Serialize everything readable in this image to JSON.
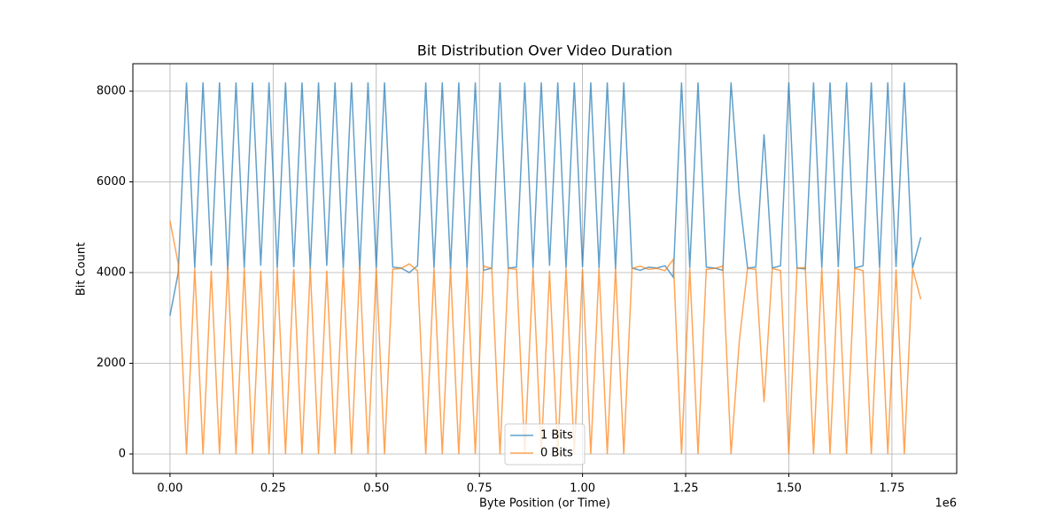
{
  "chart_data": {
    "type": "line",
    "title": "Bit Distribution Over Video Duration",
    "x_label": "Byte Position (or Time)",
    "y_label": "Bit Count",
    "x_offset_label": "1e6",
    "x": [
      0,
      20000,
      40000,
      60000,
      80000,
      100000,
      120000,
      140000,
      160000,
      180000,
      200000,
      220000,
      240000,
      260000,
      280000,
      300000,
      320000,
      340000,
      360000,
      380000,
      400000,
      420000,
      440000,
      460000,
      480000,
      500000,
      520000,
      540000,
      560000,
      580000,
      600000,
      620000,
      640000,
      660000,
      680000,
      700000,
      720000,
      740000,
      760000,
      780000,
      800000,
      820000,
      840000,
      860000,
      880000,
      900000,
      920000,
      940000,
      960000,
      980000,
      1000000,
      1020000,
      1040000,
      1060000,
      1080000,
      1100000,
      1120000,
      1140000,
      1160000,
      1180000,
      1200000,
      1220000,
      1240000,
      1260000,
      1280000,
      1300000,
      1320000,
      1340000,
      1360000,
      1380000,
      1400000,
      1420000,
      1440000,
      1460000,
      1480000,
      1500000,
      1520000,
      1540000,
      1560000,
      1580000,
      1600000,
      1620000,
      1640000,
      1660000,
      1680000,
      1700000,
      1720000,
      1740000,
      1760000,
      1780000,
      1800000,
      1820000
    ],
    "series": [
      {
        "name": "1 Bits",
        "color": "#1f77b4",
        "values": [
          3050,
          4000,
          8192,
          4100,
          8192,
          4150,
          8192,
          4050,
          8192,
          4100,
          8192,
          4150,
          8192,
          4100,
          8192,
          4120,
          8192,
          4080,
          8192,
          4150,
          8192,
          4100,
          8192,
          4050,
          8192,
          4100,
          8192,
          4120,
          4100,
          4000,
          4150,
          8192,
          4100,
          8192,
          4080,
          8192,
          4100,
          8192,
          4050,
          4100,
          8192,
          4100,
          4120,
          8192,
          4100,
          8192,
          4150,
          8192,
          4100,
          8192,
          4120,
          8192,
          4100,
          8192,
          4080,
          8192,
          4100,
          4050,
          4120,
          4100,
          4150,
          3900,
          8192,
          4100,
          8192,
          4120,
          4100,
          4050,
          8192,
          5700,
          4100,
          4120,
          7050,
          4100,
          4150,
          8192,
          4100,
          4080,
          8192,
          4100,
          8192,
          4120,
          8192,
          4100,
          4150,
          8192,
          4100,
          8192,
          4120,
          8192,
          4100,
          4780
        ]
      },
      {
        "name": "0 Bits",
        "color": "#ff7f0e",
        "values": [
          5142,
          4192,
          0,
          4092,
          0,
          4042,
          0,
          4142,
          0,
          4092,
          0,
          4042,
          0,
          4092,
          0,
          4072,
          0,
          4112,
          0,
          4042,
          0,
          4092,
          0,
          4142,
          0,
          4092,
          0,
          4072,
          4092,
          4192,
          4042,
          0,
          4092,
          0,
          4112,
          0,
          4092,
          0,
          4142,
          4092,
          0,
          4092,
          4072,
          0,
          4092,
          0,
          4042,
          0,
          4092,
          0,
          4072,
          0,
          4092,
          0,
          4112,
          0,
          4092,
          4142,
          4072,
          4092,
          4042,
          4292,
          0,
          4092,
          0,
          4072,
          4092,
          4142,
          0,
          2492,
          4092,
          4072,
          1142,
          4092,
          4042,
          0,
          4092,
          4112,
          0,
          4092,
          0,
          4072,
          0,
          4092,
          4042,
          0,
          4092,
          0,
          4072,
          0,
          4092,
          3412
        ]
      }
    ],
    "xlim": [
      -90000,
      1907000
    ],
    "xticks": [
      {
        "value": 0,
        "label": "0.00"
      },
      {
        "value": 250000,
        "label": "0.25"
      },
      {
        "value": 500000,
        "label": "0.50"
      },
      {
        "value": 750000,
        "label": "0.75"
      },
      {
        "value": 1000000,
        "label": "1.00"
      },
      {
        "value": 1250000,
        "label": "1.25"
      },
      {
        "value": 1500000,
        "label": "1.50"
      },
      {
        "value": 1750000,
        "label": "1.75"
      }
    ],
    "ylim": [
      -429,
      8605
    ],
    "yticks": [
      0,
      2000,
      4000,
      6000,
      8000
    ],
    "grid": true,
    "legend": "lower center"
  }
}
